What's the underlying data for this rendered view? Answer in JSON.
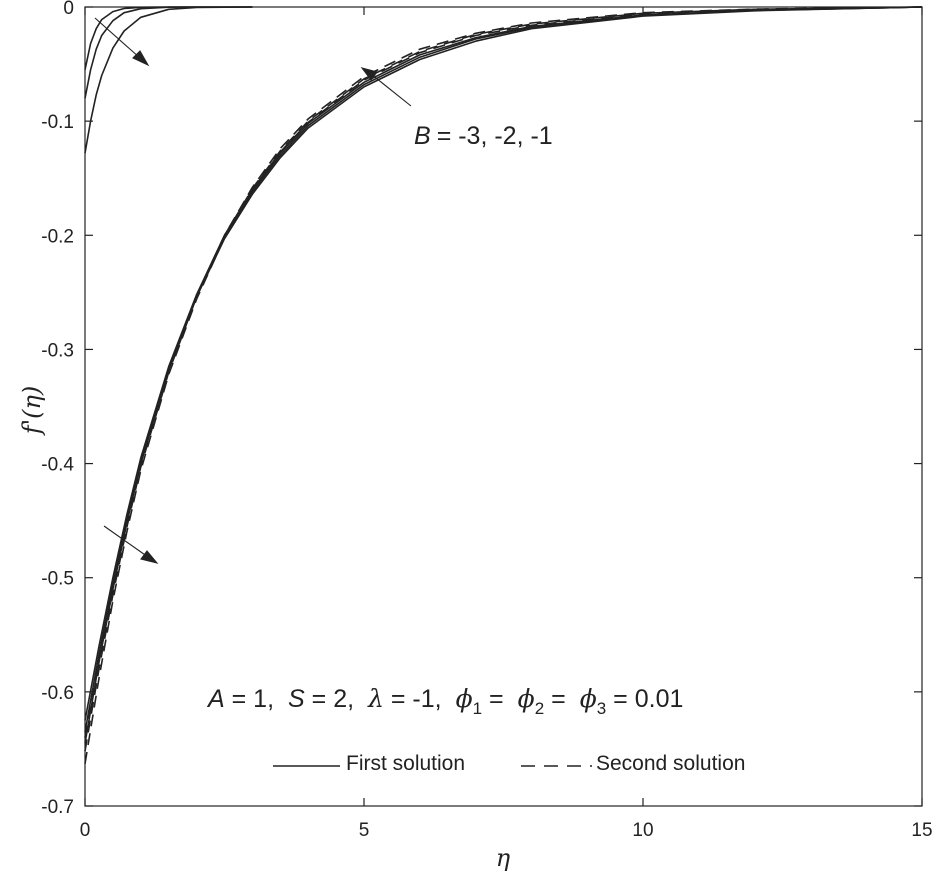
{
  "chart_data": {
    "type": "line",
    "xlabel": "η",
    "ylabel": "f'(η)",
    "xlim": [
      0,
      15
    ],
    "ylim": [
      -0.7,
      0
    ],
    "xticks": [
      "0",
      "5",
      "10",
      "15"
    ],
    "yticks": [
      "0",
      "-0.1",
      "-0.2",
      "-0.3",
      "-0.4",
      "-0.5",
      "-0.6",
      "-0.7"
    ],
    "grid": false,
    "legend": {
      "placement": "bottom-center",
      "entries": [
        {
          "label": "First solution",
          "style": "solid"
        },
        {
          "label": "Second solution",
          "style": "dashed"
        }
      ]
    },
    "annotations": {
      "b_label": "B",
      "b_values": "= -3, -2, -1",
      "params": [
        {
          "sym": "A",
          "text": " = 1,"
        },
        {
          "sym": "S",
          "text": " = 2,"
        },
        {
          "sym": "λ",
          "text": " = -1,"
        },
        {
          "sym": "ϕ",
          "sub": "1",
          "text": " ="
        },
        {
          "sym": "ϕ",
          "sub": "2",
          "text": " ="
        },
        {
          "sym": "ϕ",
          "sub": "3",
          "text": " = 0.01"
        }
      ]
    },
    "series": [
      {
        "style": "solid",
        "x": [
          0,
          0.1,
          0.2,
          0.3,
          0.5,
          0.7,
          1.0,
          1.5,
          2.0,
          3.0
        ],
        "y": [
          -0.055,
          -0.032,
          -0.019,
          -0.011,
          -0.004,
          -0.0013,
          -0.0003,
          0,
          0,
          0
        ]
      },
      {
        "style": "solid",
        "x": [
          0,
          0.1,
          0.2,
          0.3,
          0.5,
          0.7,
          1.0,
          1.5,
          2.0,
          3.0
        ],
        "y": [
          -0.08,
          -0.055,
          -0.037,
          -0.025,
          -0.012,
          -0.005,
          -0.0015,
          -0.0002,
          0,
          0
        ]
      },
      {
        "style": "solid",
        "x": [
          0,
          0.1,
          0.2,
          0.3,
          0.5,
          0.7,
          1.0,
          1.5,
          2.0,
          3.0
        ],
        "y": [
          -0.128,
          -0.1,
          -0.077,
          -0.06,
          -0.036,
          -0.021,
          -0.009,
          -0.002,
          -0.0004,
          0
        ]
      },
      {
        "style": "solid",
        "x": [
          0,
          0.25,
          0.5,
          0.75,
          1.0,
          1.5,
          2.0,
          2.5,
          3.0,
          3.5,
          4.0,
          5.0,
          6.0,
          7.0,
          8.0,
          10.0,
          12.0,
          15.0
        ],
        "y": [
          -0.625,
          -0.56,
          -0.5,
          -0.445,
          -0.395,
          -0.315,
          -0.252,
          -0.2,
          -0.16,
          -0.128,
          -0.102,
          -0.066,
          -0.042,
          -0.027,
          -0.017,
          -0.007,
          -0.003,
          0
        ]
      },
      {
        "style": "solid",
        "x": [
          0,
          0.25,
          0.5,
          0.75,
          1.0,
          1.5,
          2.0,
          2.5,
          3.0,
          3.5,
          4.0,
          5.0,
          6.0,
          7.0,
          8.0,
          10.0,
          12.0,
          15.0
        ],
        "y": [
          -0.635,
          -0.567,
          -0.505,
          -0.448,
          -0.397,
          -0.316,
          -0.253,
          -0.202,
          -0.162,
          -0.13,
          -0.104,
          -0.068,
          -0.044,
          -0.028,
          -0.018,
          -0.0075,
          -0.003,
          0
        ]
      },
      {
        "style": "solid",
        "x": [
          0,
          0.25,
          0.5,
          0.75,
          1.0,
          1.5,
          2.0,
          2.5,
          3.0,
          3.5,
          4.0,
          5.0,
          6.0,
          7.0,
          8.0,
          10.0,
          12.0,
          15.0
        ],
        "y": [
          -0.645,
          -0.574,
          -0.51,
          -0.452,
          -0.4,
          -0.318,
          -0.254,
          -0.203,
          -0.164,
          -0.132,
          -0.106,
          -0.07,
          -0.046,
          -0.03,
          -0.019,
          -0.008,
          -0.0033,
          0
        ]
      },
      {
        "style": "dashed",
        "x": [
          0,
          0.25,
          0.5,
          0.75,
          1.0,
          1.5,
          2.0,
          2.5,
          3.0,
          3.5,
          4.0,
          5.0,
          6.0,
          7.0,
          8.0,
          10.0,
          12.0,
          15.0
        ],
        "y": [
          -0.64,
          -0.572,
          -0.51,
          -0.452,
          -0.4,
          -0.318,
          -0.253,
          -0.2,
          -0.158,
          -0.124,
          -0.098,
          -0.061,
          -0.037,
          -0.023,
          -0.014,
          -0.005,
          -0.0018,
          0
        ]
      },
      {
        "style": "dashed",
        "x": [
          0,
          0.25,
          0.5,
          0.75,
          1.0,
          1.5,
          2.0,
          2.5,
          3.0,
          3.5,
          4.0,
          5.0,
          6.0,
          7.0,
          8.0,
          10.0,
          12.0,
          15.0
        ],
        "y": [
          -0.652,
          -0.58,
          -0.515,
          -0.456,
          -0.403,
          -0.32,
          -0.254,
          -0.201,
          -0.159,
          -0.126,
          -0.1,
          -0.063,
          -0.039,
          -0.024,
          -0.015,
          -0.0055,
          -0.002,
          0
        ]
      },
      {
        "style": "dashed",
        "x": [
          0,
          0.25,
          0.5,
          0.75,
          1.0,
          1.5,
          2.0,
          2.5,
          3.0,
          3.5,
          4.0,
          5.0,
          6.0,
          7.0,
          8.0,
          10.0,
          12.0,
          15.0
        ],
        "y": [
          -0.663,
          -0.588,
          -0.52,
          -0.46,
          -0.406,
          -0.322,
          -0.256,
          -0.202,
          -0.16,
          -0.127,
          -0.101,
          -0.064,
          -0.04,
          -0.025,
          -0.016,
          -0.006,
          -0.0022,
          0
        ]
      }
    ]
  }
}
